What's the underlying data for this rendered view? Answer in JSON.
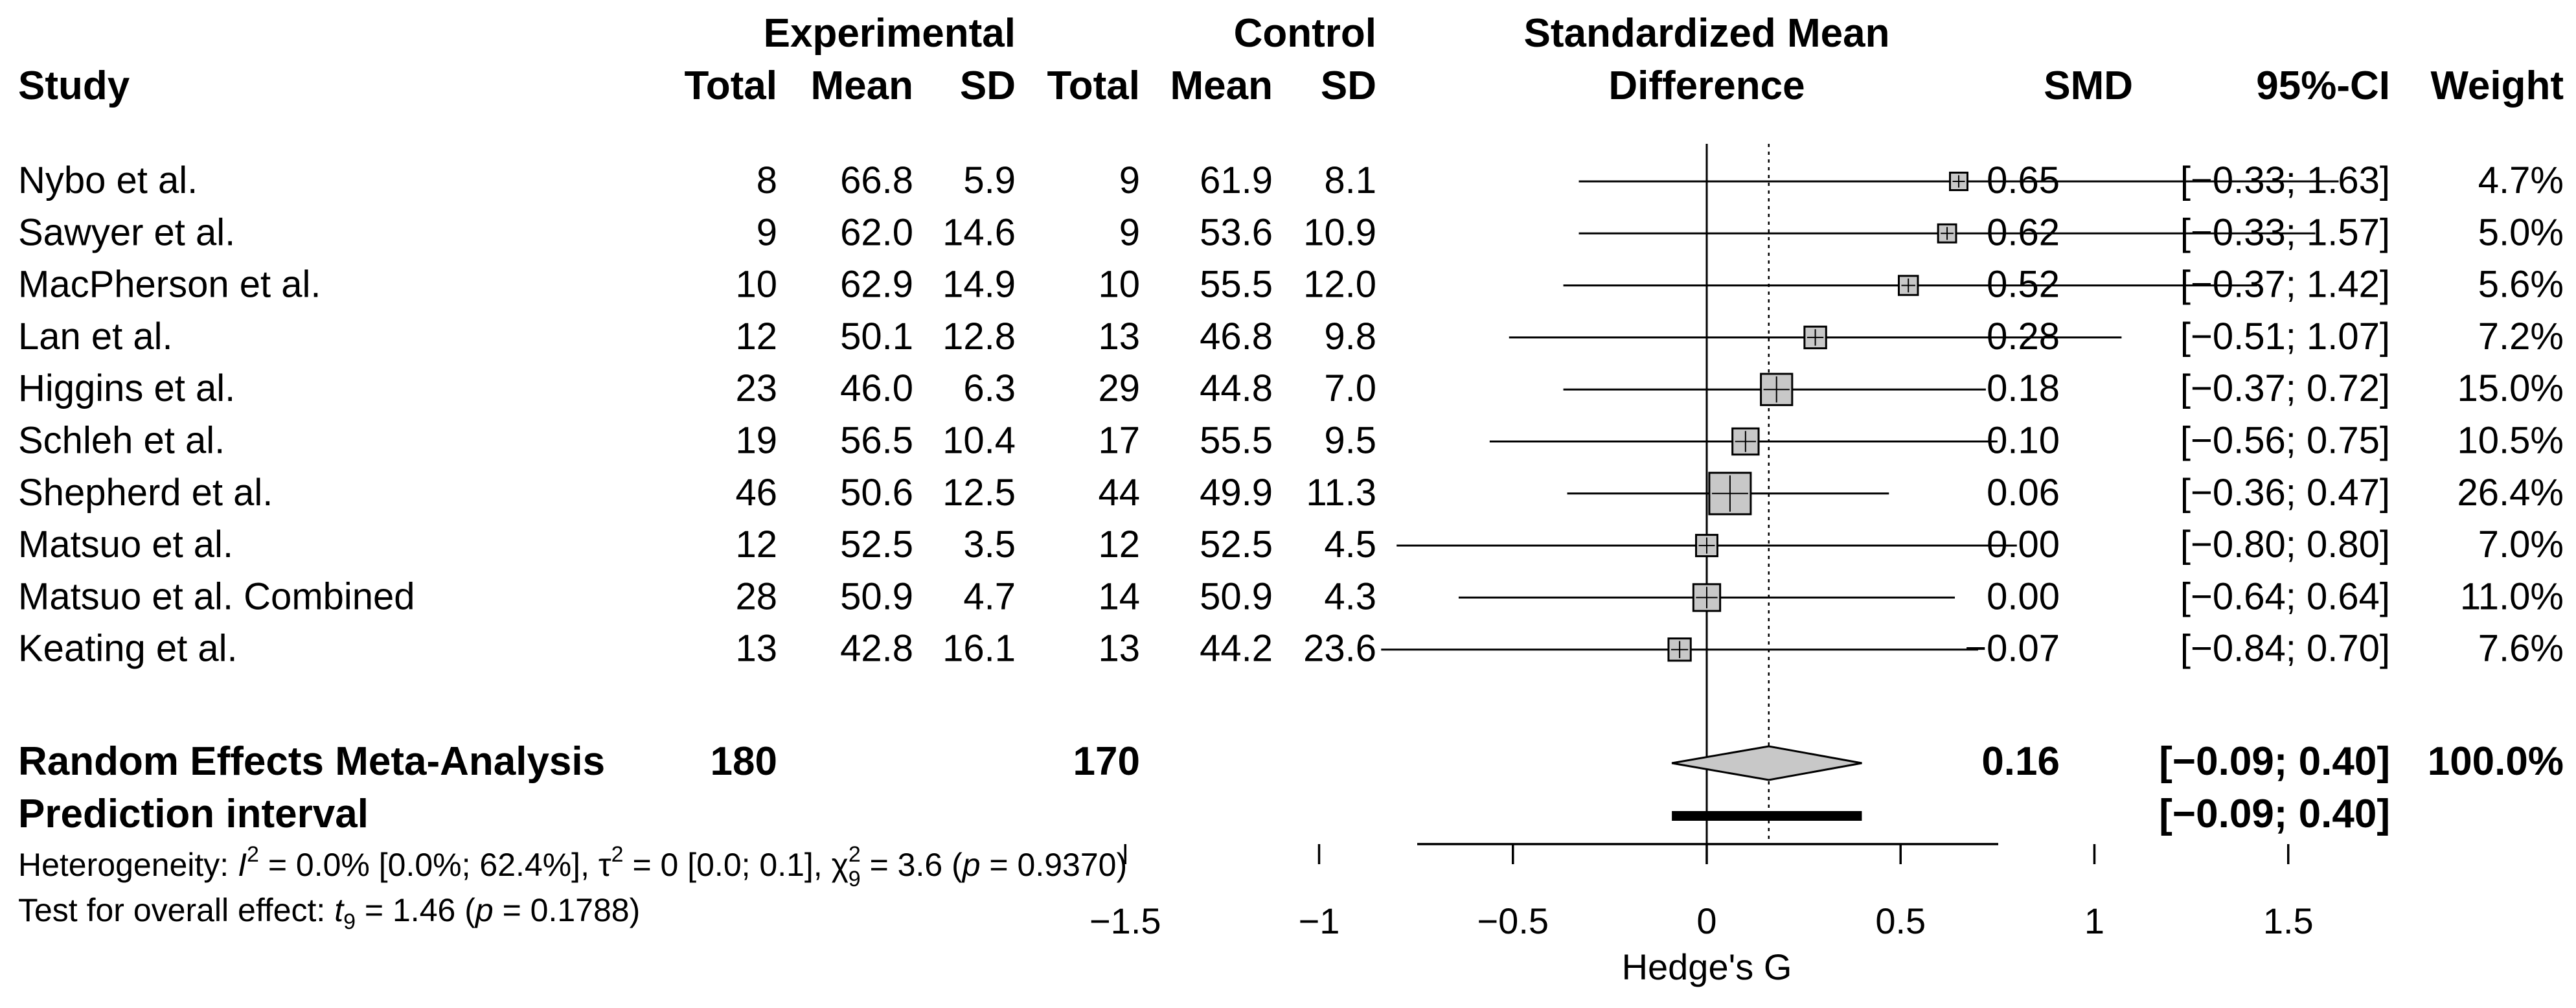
{
  "chart_data": {
    "type": "forest",
    "headers": {
      "study": "Study",
      "group_experimental": "Experimental",
      "group_control": "Control",
      "total": "Total",
      "mean": "Mean",
      "sd": "SD",
      "effect_title_line1": "Standardized Mean",
      "effect_title_line2": "Difference",
      "smd": "SMD",
      "ci": "95%-CI",
      "weight": "Weight"
    },
    "studies": [
      {
        "name": "Nybo et al.",
        "e_total": "8",
        "e_mean": "66.8",
        "e_sd": "5.9",
        "c_total": "9",
        "c_mean": "61.9",
        "c_sd": "8.1",
        "smd": 0.65,
        "lower": -0.33,
        "upper": 1.63,
        "weight": 4.7,
        "smd_text": "0.65",
        "ci_text": "[−0.33; 1.63]",
        "weight_text": "4.7%"
      },
      {
        "name": "Sawyer et al.",
        "e_total": "9",
        "e_mean": "62.0",
        "e_sd": "14.6",
        "c_total": "9",
        "c_mean": "53.6",
        "c_sd": "10.9",
        "smd": 0.62,
        "lower": -0.33,
        "upper": 1.57,
        "weight": 5.0,
        "smd_text": "0.62",
        "ci_text": "[−0.33; 1.57]",
        "weight_text": "5.0%"
      },
      {
        "name": "MacPherson et al.",
        "e_total": "10",
        "e_mean": "62.9",
        "e_sd": "14.9",
        "c_total": "10",
        "c_mean": "55.5",
        "c_sd": "12.0",
        "smd": 0.52,
        "lower": -0.37,
        "upper": 1.42,
        "weight": 5.6,
        "smd_text": "0.52",
        "ci_text": "[−0.37; 1.42]",
        "weight_text": "5.6%"
      },
      {
        "name": "Lan et al.",
        "e_total": "12",
        "e_mean": "50.1",
        "e_sd": "12.8",
        "c_total": "13",
        "c_mean": "46.8",
        "c_sd": "9.8",
        "smd": 0.28,
        "lower": -0.51,
        "upper": 1.07,
        "weight": 7.2,
        "smd_text": "0.28",
        "ci_text": "[−0.51; 1.07]",
        "weight_text": "7.2%"
      },
      {
        "name": "Higgins et al.",
        "e_total": "23",
        "e_mean": "46.0",
        "e_sd": "6.3",
        "c_total": "29",
        "c_mean": "44.8",
        "c_sd": "7.0",
        "smd": 0.18,
        "lower": -0.37,
        "upper": 0.72,
        "weight": 15.0,
        "smd_text": "0.18",
        "ci_text": "[−0.37; 0.72]",
        "weight_text": "15.0%"
      },
      {
        "name": "Schleh et al.",
        "e_total": "19",
        "e_mean": "56.5",
        "e_sd": "10.4",
        "c_total": "17",
        "c_mean": "55.5",
        "c_sd": "9.5",
        "smd": 0.1,
        "lower": -0.56,
        "upper": 0.75,
        "weight": 10.5,
        "smd_text": "0.10",
        "ci_text": "[−0.56; 0.75]",
        "weight_text": "10.5%"
      },
      {
        "name": "Shepherd et al.",
        "e_total": "46",
        "e_mean": "50.6",
        "e_sd": "12.5",
        "c_total": "44",
        "c_mean": "49.9",
        "c_sd": "11.3",
        "smd": 0.06,
        "lower": -0.36,
        "upper": 0.47,
        "weight": 26.4,
        "smd_text": "0.06",
        "ci_text": "[−0.36; 0.47]",
        "weight_text": "26.4%"
      },
      {
        "name": "Matsuo et al.",
        "e_total": "12",
        "e_mean": "52.5",
        "e_sd": "3.5",
        "c_total": "12",
        "c_mean": "52.5",
        "c_sd": "4.5",
        "smd": 0.0,
        "lower": -0.8,
        "upper": 0.8,
        "weight": 7.0,
        "smd_text": "0.00",
        "ci_text": "[−0.80; 0.80]",
        "weight_text": "7.0%"
      },
      {
        "name": "Matsuo et al. Combined",
        "e_total": "28",
        "e_mean": "50.9",
        "e_sd": "4.7",
        "c_total": "14",
        "c_mean": "50.9",
        "c_sd": "4.3",
        "smd": 0.0,
        "lower": -0.64,
        "upper": 0.64,
        "weight": 11.0,
        "smd_text": "0.00",
        "ci_text": "[−0.64; 0.64]",
        "weight_text": "11.0%"
      },
      {
        "name": "Keating et al.",
        "e_total": "13",
        "e_mean": "42.8",
        "e_sd": "16.1",
        "c_total": "13",
        "c_mean": "44.2",
        "c_sd": "23.6",
        "smd": -0.07,
        "lower": -0.84,
        "upper": 0.7,
        "weight": 7.6,
        "smd_text": "−0.07",
        "ci_text": "[−0.84; 0.70]",
        "weight_text": "7.6%"
      }
    ],
    "summary": {
      "label": "Random Effects Meta-Analysis",
      "e_total": "180",
      "c_total": "170",
      "smd": 0.16,
      "lower": -0.09,
      "upper": 0.4,
      "smd_text": "0.16",
      "ci_text": "[−0.09; 0.40]",
      "weight_text": "100.0%"
    },
    "prediction": {
      "label": "Prediction interval",
      "lower": -0.09,
      "upper": 0.4,
      "ci_text": "[−0.09; 0.40]"
    },
    "heterogeneity": {
      "prefix": "Heterogeneity: ",
      "I2_symbol": "I",
      "I2_text": " = 0.0% [0.0%; 62.4%], ",
      "tau2_text": "τ",
      "tau2_value": " = 0 [0.0; 0.1], ",
      "chi2_symbol": "χ",
      "chi2_df": "9",
      "chi2_value": " = 3.6 (",
      "p_symbol": "p",
      "p_value": " = 0.9370)"
    },
    "overall": {
      "prefix": "Test for overall effect: ",
      "t_symbol": "t",
      "t_df": "9",
      "t_value": " = 1.46 (",
      "p_symbol": "p",
      "p_value": " = 0.1788)"
    },
    "axis": {
      "xlim": [
        -1.5,
        1.5
      ],
      "ticks": [
        -1.5,
        -1,
        -0.5,
        0,
        0.5,
        1,
        1.5
      ],
      "tick_labels": [
        "−1.5",
        "−1",
        "−0.5",
        "0",
        "0.5",
        "1",
        "1.5"
      ],
      "xlabel": "Hedge's G",
      "null_value": 0
    }
  }
}
